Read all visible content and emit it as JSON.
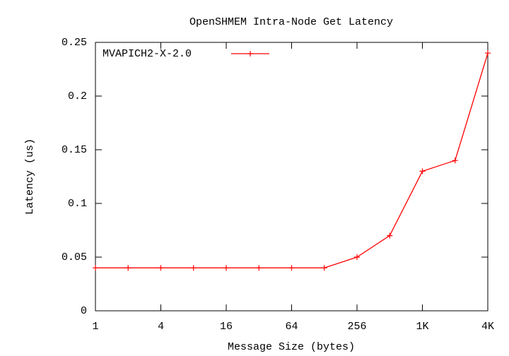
{
  "chart_data": {
    "type": "line",
    "title": "OpenSHMEM Intra-Node Get Latency",
    "x_label": "Message Size (bytes)",
    "y_label": "Latency (us)",
    "x": [
      1,
      2,
      4,
      8,
      16,
      32,
      64,
      128,
      256,
      512,
      1024,
      2048,
      4096
    ],
    "series": [
      {
        "name": "MVAPICH2-X-2.0",
        "color": "#ff0000",
        "values": [
          0.04,
          0.04,
          0.04,
          0.04,
          0.04,
          0.04,
          0.04,
          0.04,
          0.05,
          0.07,
          0.13,
          0.14,
          0.24
        ]
      }
    ],
    "xscale": "log2",
    "xlim": [
      1,
      4096
    ],
    "xticks": [
      1,
      4,
      16,
      64,
      256,
      {
        "value": 1024,
        "label": "1K"
      },
      {
        "value": 4096,
        "label": "4K"
      }
    ],
    "ylim": [
      0,
      0.25
    ],
    "yticks": [
      0,
      0.05,
      0.1,
      0.15,
      0.2,
      0.25
    ],
    "legend": "top-left",
    "grid": false
  }
}
